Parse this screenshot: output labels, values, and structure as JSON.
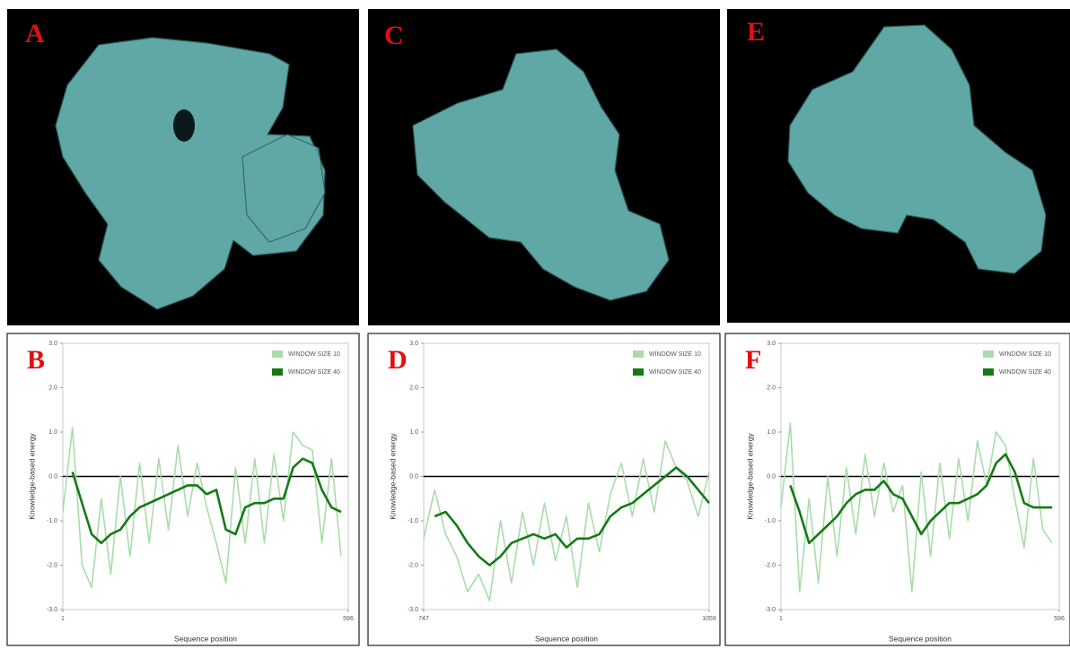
{
  "image_panels": [
    {
      "label": "A"
    },
    {
      "label": "C"
    },
    {
      "label": "E"
    }
  ],
  "chart_data": [
    {
      "type": "line",
      "panel": "B",
      "ylabel": "Knowledge-based energy",
      "xlabel": "Sequence position",
      "x": [
        1,
        21,
        41,
        61,
        81,
        101,
        121,
        141,
        161,
        181,
        201,
        221,
        241,
        261,
        281,
        301,
        321,
        341,
        361,
        381,
        401,
        421,
        441,
        461,
        481,
        501,
        521,
        541,
        561,
        581
      ],
      "xlim": [
        1,
        596
      ],
      "xticks": [
        1,
        596
      ],
      "ylim": [
        -3,
        3
      ],
      "yticks": [
        {
          "value": -3,
          "label": "-3.0"
        },
        {
          "value": -2,
          "label": "-2.0"
        },
        {
          "value": -1,
          "label": "-1.0"
        },
        {
          "value": 0,
          "label": "0.0"
        },
        {
          "value": 1,
          "label": "1.0"
        },
        {
          "value": 2,
          "label": "2.0"
        },
        {
          "value": 3,
          "label": "3.0"
        }
      ],
      "reference_line": 0,
      "series": [
        {
          "name": "WINDOW SIZE 10",
          "color": "#a9dca9",
          "values": [
            -0.8,
            1.1,
            -2.0,
            -2.5,
            -0.5,
            -2.2,
            0.0,
            -1.8,
            0.3,
            -1.5,
            0.4,
            -1.2,
            0.7,
            -0.9,
            0.3,
            -0.7,
            -1.5,
            -2.4,
            0.2,
            -1.5,
            0.4,
            -1.5,
            0.5,
            -1.0,
            1.0,
            0.7,
            0.6,
            -1.5,
            0.4,
            -1.8
          ]
        },
        {
          "name": "WINDOW SIZE 40",
          "color": "#157a15",
          "values": [
            null,
            0.1,
            -0.6,
            -1.3,
            -1.5,
            -1.3,
            -1.2,
            -0.9,
            -0.7,
            -0.6,
            -0.5,
            -0.4,
            -0.3,
            -0.2,
            -0.2,
            -0.4,
            -0.3,
            -1.2,
            -1.3,
            -0.7,
            -0.6,
            -0.6,
            -0.5,
            -0.5,
            0.2,
            0.4,
            0.3,
            -0.3,
            -0.7,
            -0.8
          ]
        }
      ]
    },
    {
      "type": "line",
      "panel": "D",
      "ylabel": "Knowledge-based energy",
      "xlabel": "Sequence position",
      "x": [
        747,
        759,
        771,
        783,
        795,
        807,
        819,
        831,
        843,
        855,
        867,
        879,
        891,
        903,
        915,
        927,
        939,
        951,
        963,
        975,
        987,
        999,
        1011,
        1023,
        1035,
        1047,
        1059
      ],
      "xlim": [
        747,
        1059
      ],
      "xticks": [
        747,
        1059
      ],
      "ylim": [
        -3,
        3
      ],
      "yticks": [
        {
          "value": -3,
          "label": "-3.0"
        },
        {
          "value": -2,
          "label": "-2.0"
        },
        {
          "value": -1,
          "label": "-1.0"
        },
        {
          "value": 0,
          "label": "0.0"
        },
        {
          "value": 1,
          "label": "1.0"
        },
        {
          "value": 2,
          "label": "2.0"
        },
        {
          "value": 3,
          "label": "3.0"
        }
      ],
      "reference_line": 0,
      "series": [
        {
          "name": "WINDOW SIZE 10",
          "color": "#a9dca9",
          "values": [
            -1.4,
            -0.3,
            -1.3,
            -1.8,
            -2.6,
            -2.2,
            -2.8,
            -1.0,
            -2.4,
            -0.8,
            -2.0,
            -0.6,
            -1.9,
            -0.9,
            -2.5,
            -0.6,
            -1.7,
            -0.4,
            0.3,
            -0.9,
            0.4,
            -0.8,
            0.8,
            0.2,
            -0.1,
            -0.9,
            0.1
          ]
        },
        {
          "name": "WINDOW SIZE 40",
          "color": "#157a15",
          "values": [
            null,
            -0.9,
            -0.8,
            -1.1,
            -1.5,
            -1.8,
            -2.0,
            -1.8,
            -1.5,
            -1.4,
            -1.3,
            -1.4,
            -1.3,
            -1.6,
            -1.4,
            -1.4,
            -1.3,
            -0.9,
            -0.7,
            -0.6,
            -0.4,
            -0.2,
            0.0,
            0.2,
            0.0,
            -0.3,
            -0.6
          ]
        }
      ]
    },
    {
      "type": "line",
      "panel": "F",
      "ylabel": "Knowledge-based energy",
      "xlabel": "Sequence position",
      "x": [
        1,
        21,
        41,
        61,
        81,
        101,
        121,
        141,
        161,
        181,
        201,
        221,
        241,
        261,
        281,
        301,
        321,
        341,
        361,
        381,
        401,
        421,
        441,
        461,
        481,
        501,
        521,
        541,
        561,
        581
      ],
      "xlim": [
        1,
        596
      ],
      "xticks": [
        1,
        596
      ],
      "ylim": [
        -3,
        3
      ],
      "yticks": [
        {
          "value": -3,
          "label": "-3.0"
        },
        {
          "value": -2,
          "label": "-2.0"
        },
        {
          "value": -1,
          "label": "-1.0"
        },
        {
          "value": 0,
          "label": "0.0"
        },
        {
          "value": 1,
          "label": "1.0"
        },
        {
          "value": 2,
          "label": "2.0"
        },
        {
          "value": 3,
          "label": "3.0"
        }
      ],
      "reference_line": 0,
      "series": [
        {
          "name": "WINDOW SIZE 10",
          "color": "#a9dca9",
          "values": [
            -0.7,
            1.2,
            -2.6,
            -0.5,
            -2.4,
            0.0,
            -1.8,
            0.2,
            -1.3,
            0.5,
            -0.9,
            0.3,
            -0.8,
            -0.2,
            -2.6,
            0.1,
            -1.8,
            0.3,
            -1.4,
            0.4,
            -1.0,
            0.8,
            -0.2,
            1.0,
            0.7,
            -0.5,
            -1.6,
            0.4,
            -1.2,
            -1.5
          ]
        },
        {
          "name": "WINDOW SIZE 40",
          "color": "#157a15",
          "values": [
            null,
            -0.2,
            -0.8,
            -1.5,
            -1.3,
            -1.1,
            -0.9,
            -0.6,
            -0.4,
            -0.3,
            -0.3,
            -0.1,
            -0.4,
            -0.5,
            -0.9,
            -1.3,
            -1.0,
            -0.8,
            -0.6,
            -0.6,
            -0.5,
            -0.4,
            -0.2,
            0.3,
            0.5,
            0.1,
            -0.6,
            -0.7,
            -0.7,
            -0.7
          ]
        }
      ]
    }
  ]
}
